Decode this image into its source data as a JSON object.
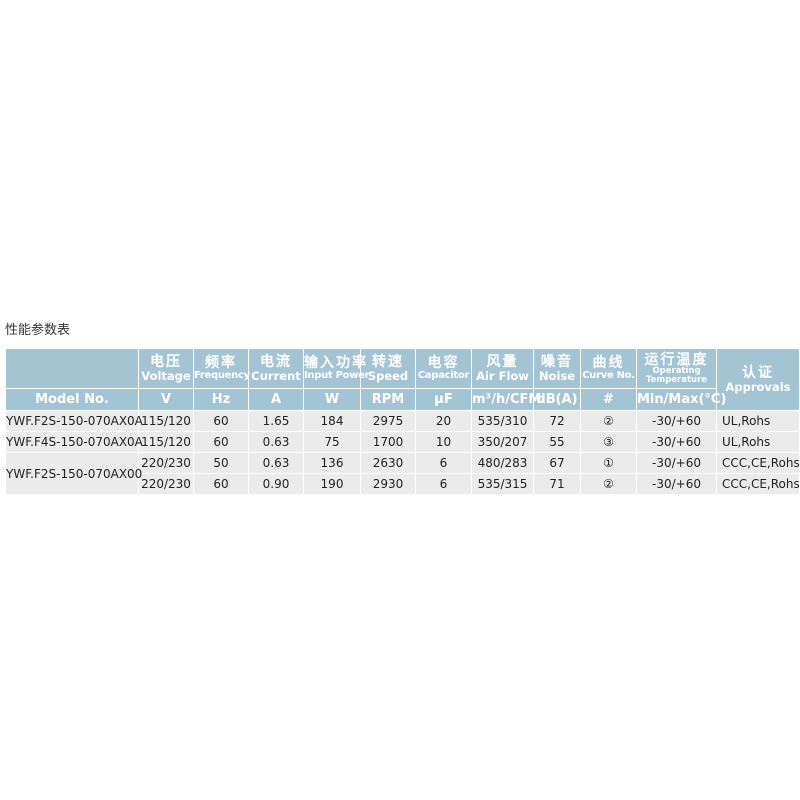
{
  "title": "性能参数表",
  "columns": [
    {
      "cn": "电压",
      "en": "Voltage",
      "unit": "V"
    },
    {
      "cn": "频率",
      "en": "Frequency",
      "unit": "Hz"
    },
    {
      "cn": "电流",
      "en": "Current",
      "unit": "A"
    },
    {
      "cn": "输入功率",
      "en": "Input Power",
      "unit": "W"
    },
    {
      "cn": "转速",
      "en": "Speed",
      "unit": "RPM"
    },
    {
      "cn": "电容",
      "en": "Capacitor",
      "unit": "μF"
    },
    {
      "cn": "风量",
      "en": "Air Flow",
      "unit": "m³/h/CFM"
    },
    {
      "cn": "噪音",
      "en": "Noise",
      "unit": "dB(A)"
    },
    {
      "cn": "曲线",
      "en": "Curve No.",
      "unit": "#"
    },
    {
      "cn": "运行温度",
      "en": "Operating Temperature",
      "unit": "Min/Max(°C)"
    },
    {
      "cn": "认证",
      "en": "Approvals"
    }
  ],
  "model_header": "Model No.",
  "rows": [
    {
      "model": "YWF.F2S-150-070AX0A",
      "v": [
        "115/120",
        "60",
        "1.65",
        "184",
        "2975",
        "20",
        "535/310",
        "72",
        "②",
        "-30/+60",
        "UL,Rohs"
      ]
    },
    {
      "model": "YWF.F4S-150-070AX0A",
      "v": [
        "115/120",
        "60",
        "0.63",
        "75",
        "1700",
        "10",
        "350/207",
        "55",
        "③",
        "-30/+60",
        "UL,Rohs"
      ]
    },
    {
      "model": "YWF.F2S-150-070AX00",
      "v": [
        "220/230",
        "50",
        "0.63",
        "136",
        "2630",
        "6",
        "480/283",
        "67",
        "①",
        "-30/+60",
        "CCC,CE,Rohs"
      ]
    },
    {
      "model": "",
      "v": [
        "220/230",
        "60",
        "0.90",
        "190",
        "2930",
        "6",
        "535/315",
        "71",
        "②",
        "-30/+60",
        "CCC,CE,Rohs"
      ]
    }
  ]
}
